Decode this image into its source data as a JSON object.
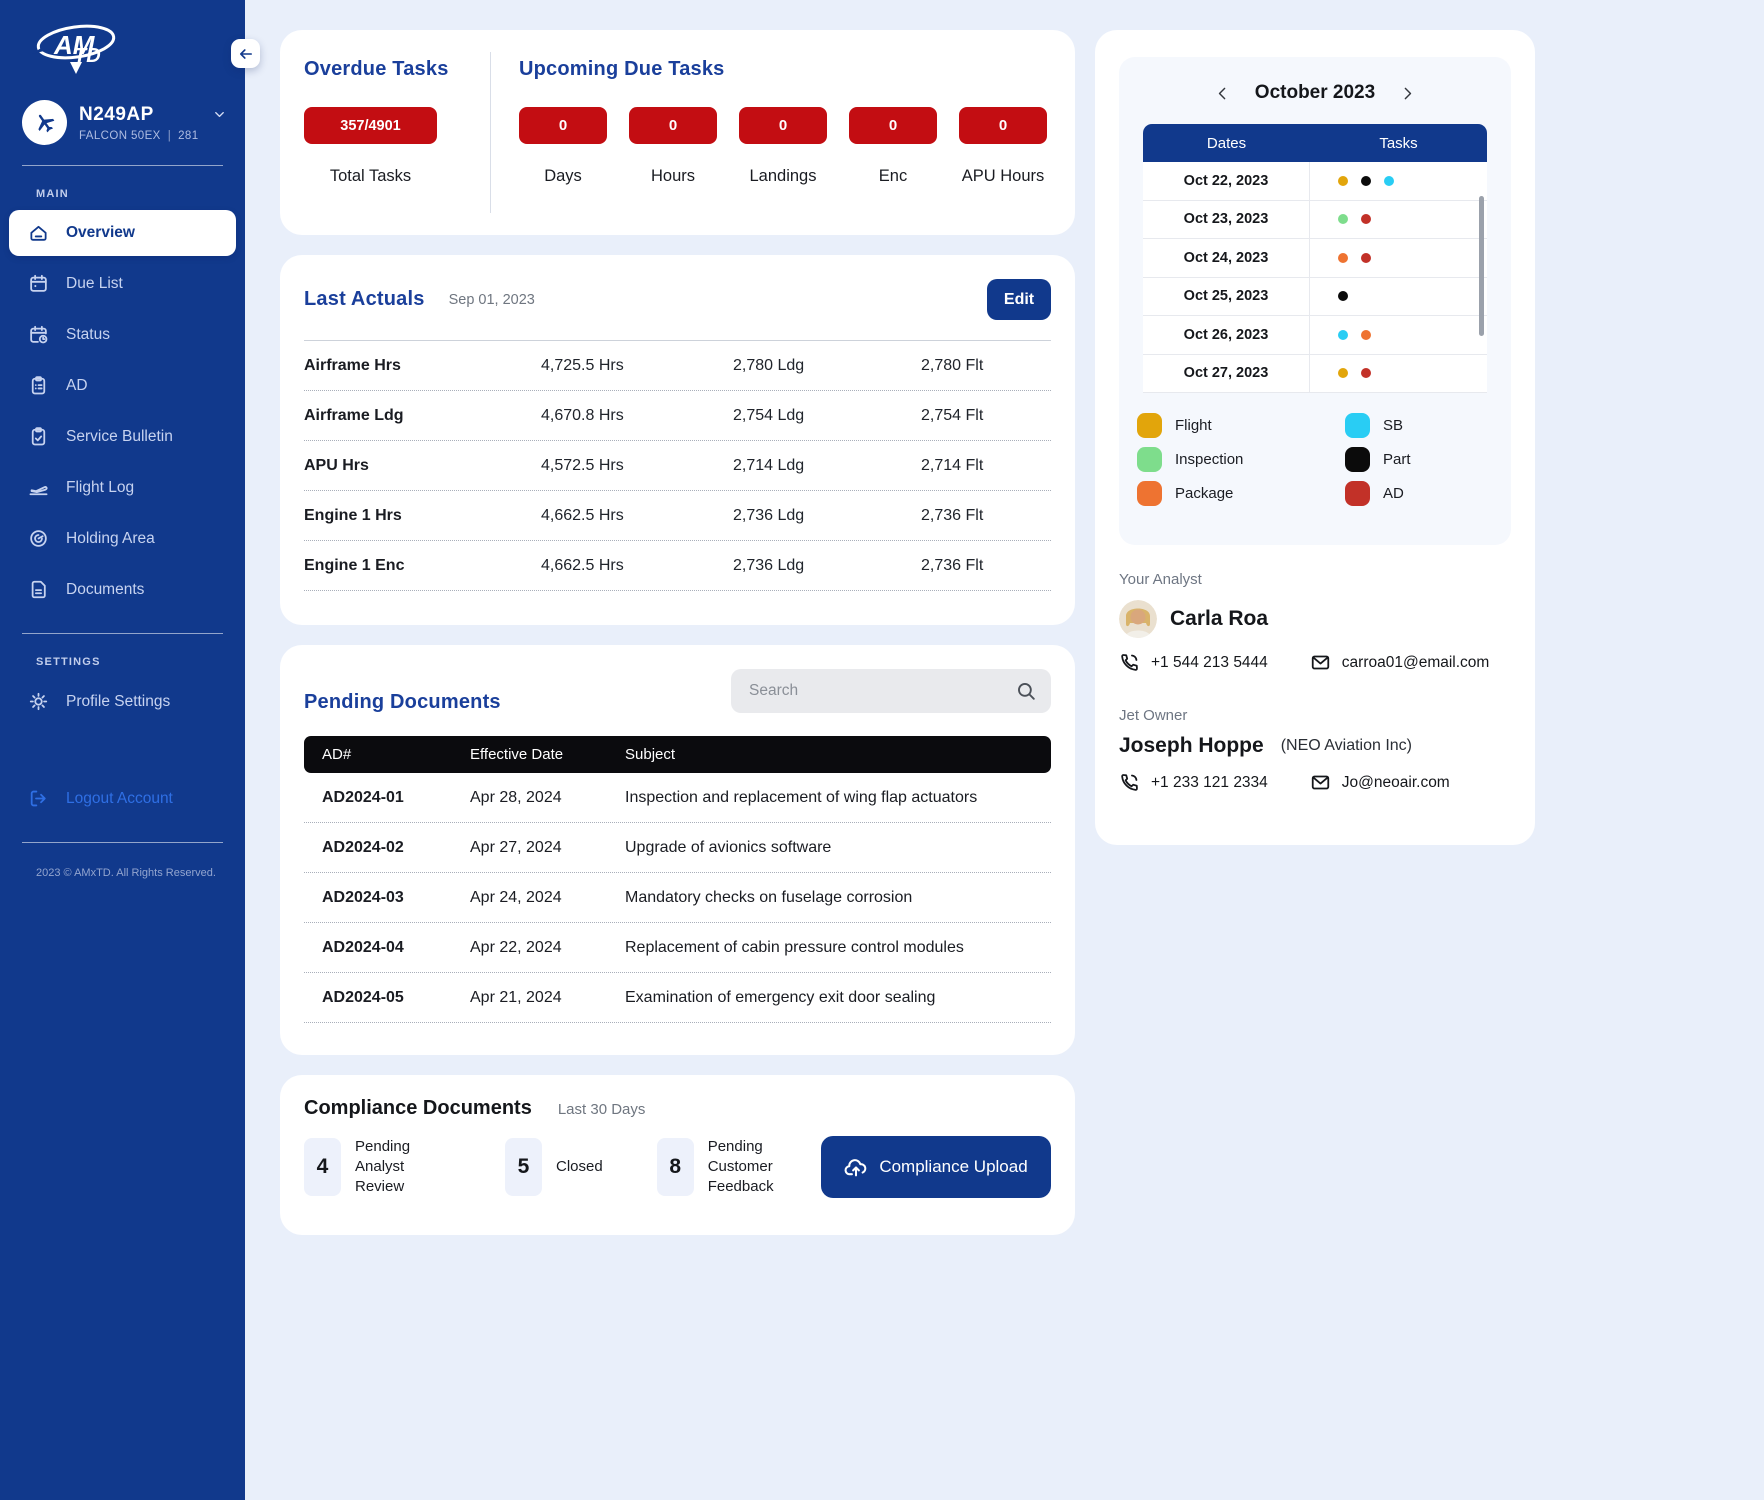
{
  "sidebar": {
    "aircraft": {
      "tail": "N249AP",
      "model": "FALCON 50EX",
      "number": "281"
    },
    "main": {
      "label": "MAIN",
      "items": [
        "Overview",
        "Due List",
        "Status",
        "AD",
        "Service Bulletin",
        "Flight Log",
        "Holding Area",
        "Documents"
      ]
    },
    "settings": {
      "label": "SETTINGS",
      "items": [
        "Profile Settings"
      ]
    },
    "logout_label": "Logout Account",
    "copyright": "2023 © AMxTD. All Rights Reserved."
  },
  "overdue": {
    "title": "Overdue Tasks",
    "pill": "357/4901",
    "label": "Total Tasks"
  },
  "upcoming": {
    "title": "Upcoming Due Tasks",
    "items": [
      {
        "value": "0",
        "label": "Days"
      },
      {
        "value": "0",
        "label": "Hours"
      },
      {
        "value": "0",
        "label": "Landings"
      },
      {
        "value": "0",
        "label": "Enc"
      },
      {
        "value": "0",
        "label": "APU Hours"
      }
    ]
  },
  "last_actuals": {
    "title": "Last Actuals",
    "date": "Sep 01, 2023",
    "edit_label": "Edit",
    "rows": [
      {
        "label": "Airframe Hrs",
        "hrs": "4,725.5 Hrs",
        "ldg": "2,780 Ldg",
        "flt": "2,780 Flt"
      },
      {
        "label": "Airframe Ldg",
        "hrs": "4,670.8 Hrs",
        "ldg": "2,754 Ldg",
        "flt": "2,754 Flt"
      },
      {
        "label": "APU Hrs",
        "hrs": "4,572.5 Hrs",
        "ldg": "2,714 Ldg",
        "flt": "2,714 Flt"
      },
      {
        "label": "Engine 1 Hrs",
        "hrs": "4,662.5 Hrs",
        "ldg": "2,736 Ldg",
        "flt": "2,736 Flt"
      },
      {
        "label": "Engine 1 Enc",
        "hrs": "4,662.5 Hrs",
        "ldg": "2,736 Ldg",
        "flt": "2,736 Flt"
      }
    ]
  },
  "pending_documents": {
    "title": "Pending Documents",
    "search_placeholder": "Search",
    "columns": [
      "AD#",
      "Effective Date",
      "Subject"
    ],
    "rows": [
      {
        "ad": "AD2024-01",
        "date": "Apr 28, 2024",
        "subject": "Inspection and replacement of wing flap actuators"
      },
      {
        "ad": "AD2024-02",
        "date": "Apr 27, 2024",
        "subject": "Upgrade of avionics software"
      },
      {
        "ad": "AD2024-03",
        "date": "Apr 24, 2024",
        "subject": "Mandatory checks on fuselage corrosion"
      },
      {
        "ad": "AD2024-04",
        "date": "Apr 22, 2024",
        "subject": "Replacement of cabin pressure control modules"
      },
      {
        "ad": "AD2024-05",
        "date": "Apr 21, 2024",
        "subject": "Examination of emergency exit door sealing"
      }
    ]
  },
  "compliance": {
    "title": "Compliance Documents",
    "subtitle": "Last 30 Days",
    "stats": [
      {
        "value": "4",
        "label": "Pending Analyst Review"
      },
      {
        "value": "5",
        "label": "Closed"
      },
      {
        "value": "8",
        "label": "Pending Customer Feedback"
      }
    ],
    "upload_label": "Compliance Upload"
  },
  "calendar": {
    "month": "October 2023",
    "columns": {
      "dates": "Dates",
      "tasks": "Tasks"
    },
    "dot_colors": {
      "flight": "#E2A50B",
      "inspection": "#7EDD8C",
      "package": "#EE7331",
      "sb": "#29CDF4",
      "part": "#0B0B0B",
      "ad": "#C23128"
    },
    "rows": [
      {
        "date": "Oct 22, 2023",
        "dots": [
          "flight",
          "part",
          "sb"
        ]
      },
      {
        "date": "Oct 23, 2023",
        "dots": [
          "inspection",
          "ad"
        ]
      },
      {
        "date": "Oct 24, 2023",
        "dots": [
          "package",
          "ad"
        ]
      },
      {
        "date": "Oct 25, 2023",
        "dots": [
          "part"
        ]
      },
      {
        "date": "Oct 26, 2023",
        "dots": [
          "sb",
          "package"
        ]
      },
      {
        "date": "Oct 27, 2023",
        "dots": [
          "flight",
          "ad"
        ]
      }
    ],
    "legend": [
      {
        "key": "flight",
        "label": "Flight"
      },
      {
        "key": "sb",
        "label": "SB"
      },
      {
        "key": "inspection",
        "label": "Inspection"
      },
      {
        "key": "part",
        "label": "Part"
      },
      {
        "key": "package",
        "label": "Package"
      },
      {
        "key": "ad",
        "label": "AD"
      }
    ]
  },
  "analyst": {
    "section": "Your Analyst",
    "name": "Carla Roa",
    "phone": "+1 544 213 5444",
    "email": "carroa01@email.com"
  },
  "owner": {
    "section": "Jet Owner",
    "name": "Joseph Hoppe",
    "company": "(NEO Aviation Inc)",
    "phone": "+1 233 121 2334",
    "email": "Jo@neoair.com"
  },
  "colors": {
    "sidebar": "#11398C",
    "accent_blue": "#11398C",
    "title_blue": "#1A3F9B",
    "alert_red": "#C30D12",
    "table_header_black": "#0B0B0E",
    "background": "#E9EFFA"
  }
}
